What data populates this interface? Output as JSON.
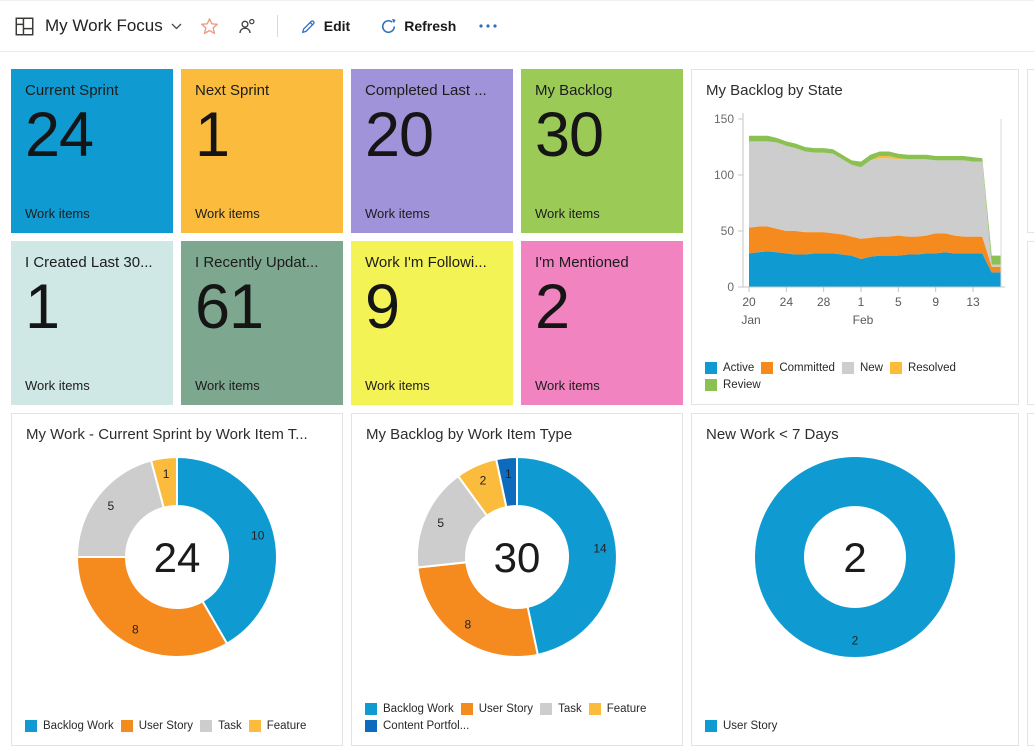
{
  "header": {
    "title": "My Work Focus",
    "edit_label": "Edit",
    "refresh_label": "Refresh"
  },
  "palette": {
    "blue": "#0f9bd1",
    "orange": "#f58b1f",
    "gray": "#cdcdcd",
    "amber": "#fbbc3d",
    "green": "#8bc152",
    "darkblue": "#0d6bbd",
    "action_blue": "#2f6fc0",
    "star_coral": "#ee9c7f"
  },
  "kpi_tiles": [
    {
      "title": "Current Sprint",
      "value": "24",
      "caption": "Work items",
      "bg": "#0f9bd1"
    },
    {
      "title": "Next Sprint",
      "value": "1",
      "caption": "Work items",
      "bg": "#fbbc3d"
    },
    {
      "title": "Completed Last ...",
      "value": "20",
      "caption": "Work items",
      "bg": "#a193d9"
    },
    {
      "title": "My Backlog",
      "value": "30",
      "caption": "Work items",
      "bg": "#9bcb56"
    },
    {
      "title": "I Created Last 30...",
      "value": "1",
      "caption": "Work items",
      "bg": "#cfe8e5"
    },
    {
      "title": "I Recently Updat...",
      "value": "61",
      "caption": "Work items",
      "bg": "#7ea78f"
    },
    {
      "title": "Work I'm Followi...",
      "value": "9",
      "caption": "Work items",
      "bg": "#f4f355"
    },
    {
      "title": "I'm Mentioned",
      "value": "2",
      "caption": "Work items",
      "bg": "#f083c0"
    }
  ],
  "chart_data": [
    {
      "type": "area",
      "stacked": true,
      "title": "My Backlog by State",
      "ylim": [
        0,
        150
      ],
      "yticks": [
        0,
        50,
        100,
        150
      ],
      "x_range": [
        "Jan 20",
        "Feb 16"
      ],
      "xticks": [
        {
          "i": 0,
          "label": "20",
          "month": "Jan"
        },
        {
          "i": 4,
          "label": "24"
        },
        {
          "i": 8,
          "label": "28"
        },
        {
          "i": 12,
          "label": "1",
          "month": "Feb"
        },
        {
          "i": 16,
          "label": "5"
        },
        {
          "i": 20,
          "label": "9"
        },
        {
          "i": 24,
          "label": "13"
        }
      ],
      "legend_position": "bottom",
      "series": [
        {
          "name": "Active",
          "color": "blue",
          "values": [
            30,
            31,
            32,
            31,
            30,
            29,
            29,
            30,
            30,
            30,
            29,
            28,
            25,
            27,
            28,
            28,
            28,
            29,
            29,
            30,
            30,
            31,
            30,
            30,
            30,
            30,
            13,
            13
          ]
        },
        {
          "name": "Committed",
          "color": "orange",
          "values": [
            23,
            23,
            22,
            21,
            20,
            21,
            20,
            19,
            19,
            18,
            18,
            17,
            18,
            17,
            17,
            17,
            18,
            16,
            16,
            16,
            18,
            17,
            16,
            15,
            15,
            15,
            5,
            5
          ]
        },
        {
          "name": "New",
          "color": "gray",
          "values": [
            77,
            76,
            76,
            77,
            76,
            74,
            72,
            71,
            71,
            71,
            67,
            64,
            64,
            69,
            70,
            70,
            68,
            69,
            69,
            68,
            65,
            65,
            67,
            68,
            67,
            67,
            2,
            2
          ]
        },
        {
          "name": "Resolved",
          "color": "amber",
          "values": [
            0,
            0,
            0,
            0,
            0,
            0,
            0,
            0,
            0,
            0,
            0,
            0,
            0,
            0,
            2,
            2,
            1,
            0,
            0,
            0,
            0,
            0,
            0,
            0,
            0,
            0,
            0,
            0
          ]
        },
        {
          "name": "Review",
          "color": "green",
          "values": [
            5,
            5,
            5,
            4,
            4,
            4,
            4,
            4,
            4,
            4,
            4,
            4,
            5,
            5,
            4,
            4,
            4,
            4,
            4,
            4,
            4,
            4,
            4,
            4,
            4,
            3,
            8,
            8
          ]
        }
      ]
    },
    {
      "type": "donut",
      "title": "My Work - Current Sprint by Work Item T...",
      "center_label": "24",
      "slices": [
        {
          "label": "Backlog Work",
          "value": 10,
          "color": "blue"
        },
        {
          "label": "User Story",
          "value": 8,
          "color": "orange"
        },
        {
          "label": "Task",
          "value": 5,
          "color": "gray"
        },
        {
          "label": "Feature",
          "value": 1,
          "color": "amber"
        }
      ]
    },
    {
      "type": "donut",
      "title": "My Backlog by Work Item Type",
      "center_label": "30",
      "slices": [
        {
          "label": "Backlog Work",
          "value": 14,
          "color": "blue"
        },
        {
          "label": "User Story",
          "value": 8,
          "color": "orange"
        },
        {
          "label": "Task",
          "value": 5,
          "color": "gray"
        },
        {
          "label": "Feature",
          "value": 2,
          "color": "amber"
        },
        {
          "label": "Content Portfol...",
          "value": 1,
          "color": "darkblue"
        }
      ]
    },
    {
      "type": "donut",
      "title": "New Work < 7 Days",
      "center_label": "2",
      "slices": [
        {
          "label": "User Story",
          "value": 2,
          "color": "blue"
        }
      ]
    }
  ]
}
